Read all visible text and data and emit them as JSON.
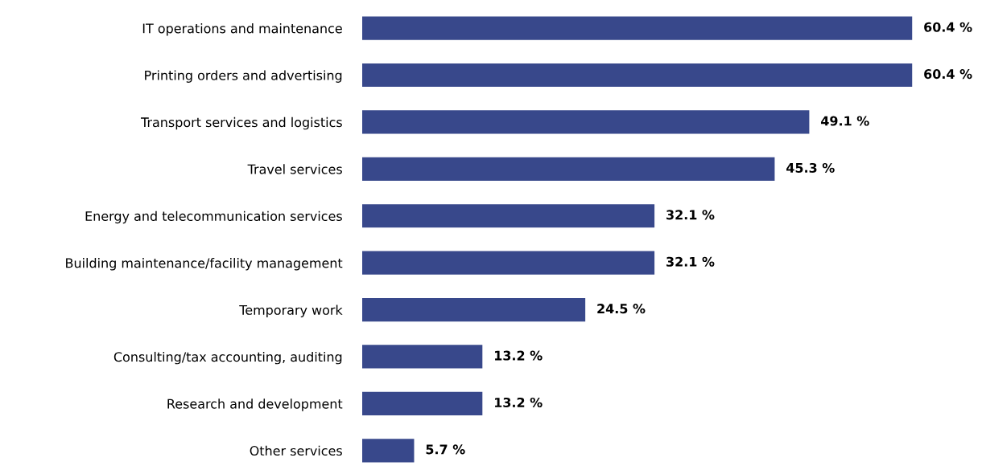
{
  "chart_data": {
    "type": "bar",
    "orientation": "horizontal",
    "tick_labels": "y",
    "grid": false,
    "categories": [
      "IT operations and maintenance",
      "Printing orders and advertising",
      "Transport services and logistics",
      "Travel services",
      "Energy and telecommunication services",
      "Building maintenance/facility management",
      "Temporary work",
      "Consulting/tax accounting, auditing",
      "Research and development",
      "Other services"
    ],
    "values": [
      60.4,
      60.4,
      49.1,
      45.3,
      32.1,
      32.1,
      24.5,
      13.2,
      13.2,
      5.7
    ],
    "value_labels": [
      "60.4 %",
      "60.4 %",
      "49.1 %",
      "45.3 %",
      "32.1 %",
      "32.1 %",
      "24.5 %",
      "13.2 %",
      "13.2 %",
      "5.7 %"
    ],
    "color": "#38488b"
  }
}
